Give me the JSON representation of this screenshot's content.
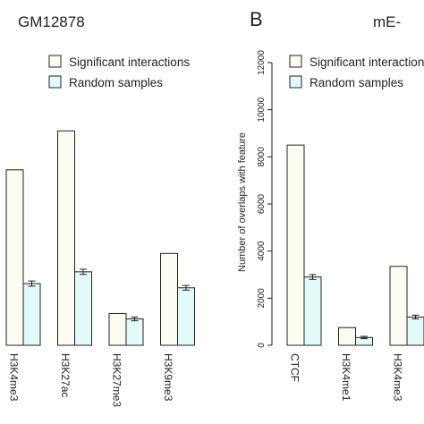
{
  "colors": {
    "significant": "#fdfcf0",
    "random": "#e2faf8",
    "stroke": "#222222"
  },
  "chart_data": [
    {
      "type": "bar",
      "panel_letter": "",
      "title": "GM12878",
      "ylabel": "",
      "xlabel": "",
      "ylim": [
        0,
        12000
      ],
      "categories": [
        "H3K4me3",
        "H3K27ac",
        "H3K27me3",
        "H3K9me3"
      ],
      "series": [
        {
          "name": "Significant interactions",
          "values": [
            7450,
            9100,
            1350,
            3900
          ]
        },
        {
          "name": "Random samples",
          "values": [
            2620,
            3120,
            1120,
            2440
          ],
          "errors": [
            110,
            110,
            80,
            100
          ]
        }
      ],
      "legend": "top-right",
      "grid": false
    },
    {
      "type": "bar",
      "panel_letter": "B",
      "title": "mE-",
      "ylabel": "Number of overlaps with feature",
      "xlabel": "",
      "ylim": [
        0,
        12000
      ],
      "yticks": [
        0,
        2000,
        4000,
        6000,
        8000,
        10000,
        12000
      ],
      "categories": [
        "CTCF",
        "H3K4me1",
        "H3K4me3"
      ],
      "series": [
        {
          "name": "Significant interactions",
          "values": [
            8500,
            750,
            3350
          ]
        },
        {
          "name": "Random samples",
          "values": [
            2900,
            330,
            1200
          ],
          "errors": [
            100,
            50,
            80
          ]
        }
      ],
      "legend": "top-right",
      "grid": false
    }
  ]
}
